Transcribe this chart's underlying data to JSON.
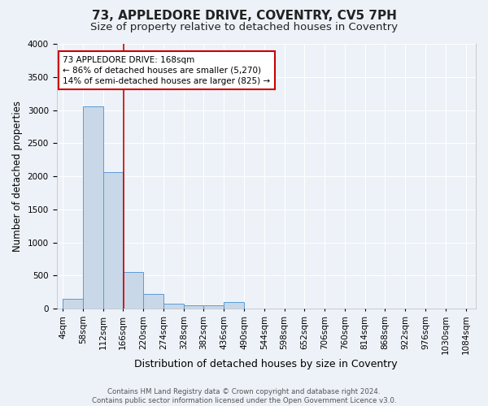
{
  "title1": "73, APPLEDORE DRIVE, COVENTRY, CV5 7PH",
  "title2": "Size of property relative to detached houses in Coventry",
  "xlabel": "Distribution of detached houses by size in Coventry",
  "ylabel": "Number of detached properties",
  "bar_color": "#c8d8e8",
  "bar_edge_color": "#5b9bd5",
  "background_color": "#edf2f8",
  "grid_color": "#ffffff",
  "bin_edges": [
    4,
    58,
    112,
    166,
    220,
    274,
    328,
    382,
    436,
    490,
    544,
    598,
    652,
    706,
    760,
    814,
    868,
    922,
    976,
    1030,
    1084
  ],
  "bar_heights": [
    150,
    3060,
    2060,
    560,
    220,
    80,
    55,
    50,
    100,
    0,
    0,
    0,
    0,
    0,
    0,
    0,
    0,
    0,
    0,
    0
  ],
  "property_size": 168,
  "red_line_color": "#cc0000",
  "annotation_line1": "73 APPLEDORE DRIVE: 168sqm",
  "annotation_line2": "← 86% of detached houses are smaller (5,270)",
  "annotation_line3": "14% of semi-detached houses are larger (825) →",
  "annotation_box_color": "#ffffff",
  "annotation_box_edge": "#cc0000",
  "ylim": [
    0,
    4000
  ],
  "yticks": [
    0,
    500,
    1000,
    1500,
    2000,
    2500,
    3000,
    3500,
    4000
  ],
  "footnote": "Contains HM Land Registry data © Crown copyright and database right 2024.\nContains public sector information licensed under the Open Government Licence v3.0.",
  "title1_fontsize": 11,
  "title2_fontsize": 9.5,
  "xlabel_fontsize": 9,
  "ylabel_fontsize": 8.5,
  "tick_fontsize": 7.5,
  "annotation_fontsize": 7.5
}
